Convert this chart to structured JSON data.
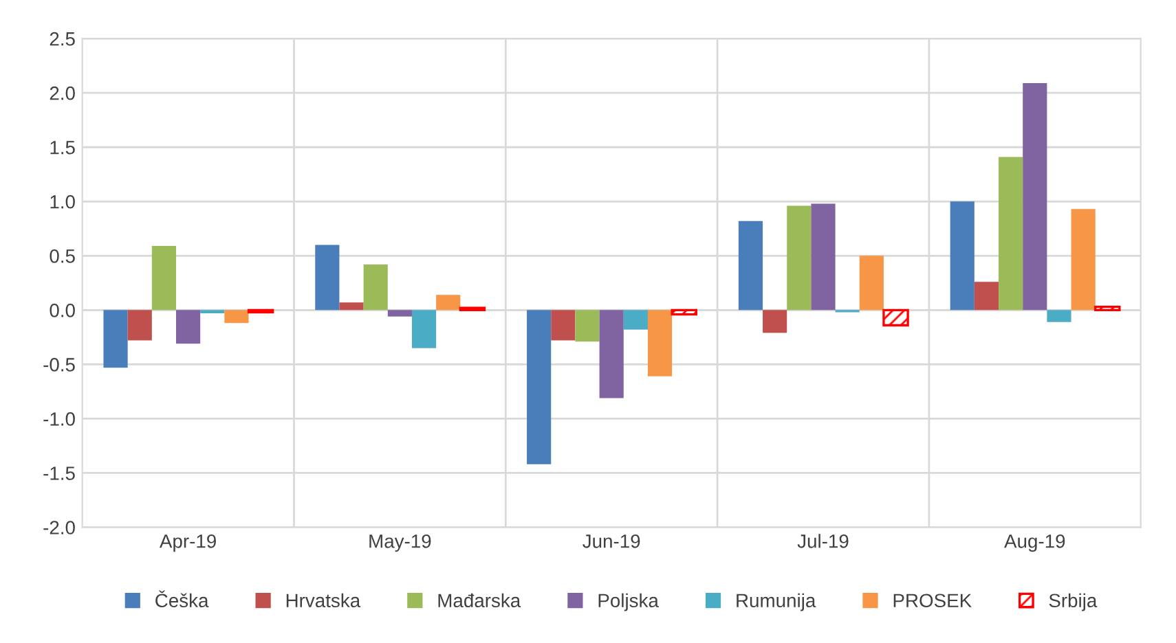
{
  "chart_data": {
    "type": "bar",
    "categories": [
      "Apr-19",
      "May-19",
      "Jun-19",
      "Jul-19",
      "Aug-19"
    ],
    "series": [
      {
        "name": "Češka",
        "color": "#4a7ebb",
        "values": [
          -0.53,
          0.6,
          -1.42,
          0.82,
          1.0
        ]
      },
      {
        "name": "Hrvatska",
        "color": "#c0504d",
        "values": [
          -0.28,
          0.07,
          -0.28,
          -0.21,
          0.26
        ]
      },
      {
        "name": "Mađarska",
        "color": "#9bbb59",
        "values": [
          0.59,
          0.42,
          -0.29,
          0.96,
          1.41
        ]
      },
      {
        "name": "Poljska",
        "color": "#8064a2",
        "values": [
          -0.31,
          -0.06,
          -0.81,
          0.98,
          2.09
        ]
      },
      {
        "name": "Rumunija",
        "color": "#4bacc6",
        "values": [
          -0.03,
          -0.35,
          -0.18,
          -0.02,
          -0.11
        ]
      },
      {
        "name": "PROSEK",
        "color": "#f79646",
        "values": [
          -0.12,
          0.14,
          -0.61,
          0.5,
          0.93
        ]
      },
      {
        "name": "Srbija",
        "color": "#ff0000",
        "values": [
          -0.02,
          0.02,
          -0.04,
          -0.14,
          0.03
        ]
      }
    ],
    "ylim": [
      -2.0,
      2.5
    ],
    "yticks": [
      {
        "value": -2.0,
        "label": "-2.0"
      },
      {
        "value": -1.5,
        "label": "-1.5"
      },
      {
        "value": -1.0,
        "label": "-1.0"
      },
      {
        "value": -0.5,
        "label": "-0.5"
      },
      {
        "value": 0.0,
        "label": "0.0"
      },
      {
        "value": 0.5,
        "label": "0.5"
      },
      {
        "value": 1.0,
        "label": "1.0"
      },
      {
        "value": 1.5,
        "label": "1.5"
      },
      {
        "value": 2.0,
        "label": "2.0"
      },
      {
        "value": 2.5,
        "label": "2.5"
      }
    ],
    "grid": true,
    "legend": "bottom"
  }
}
